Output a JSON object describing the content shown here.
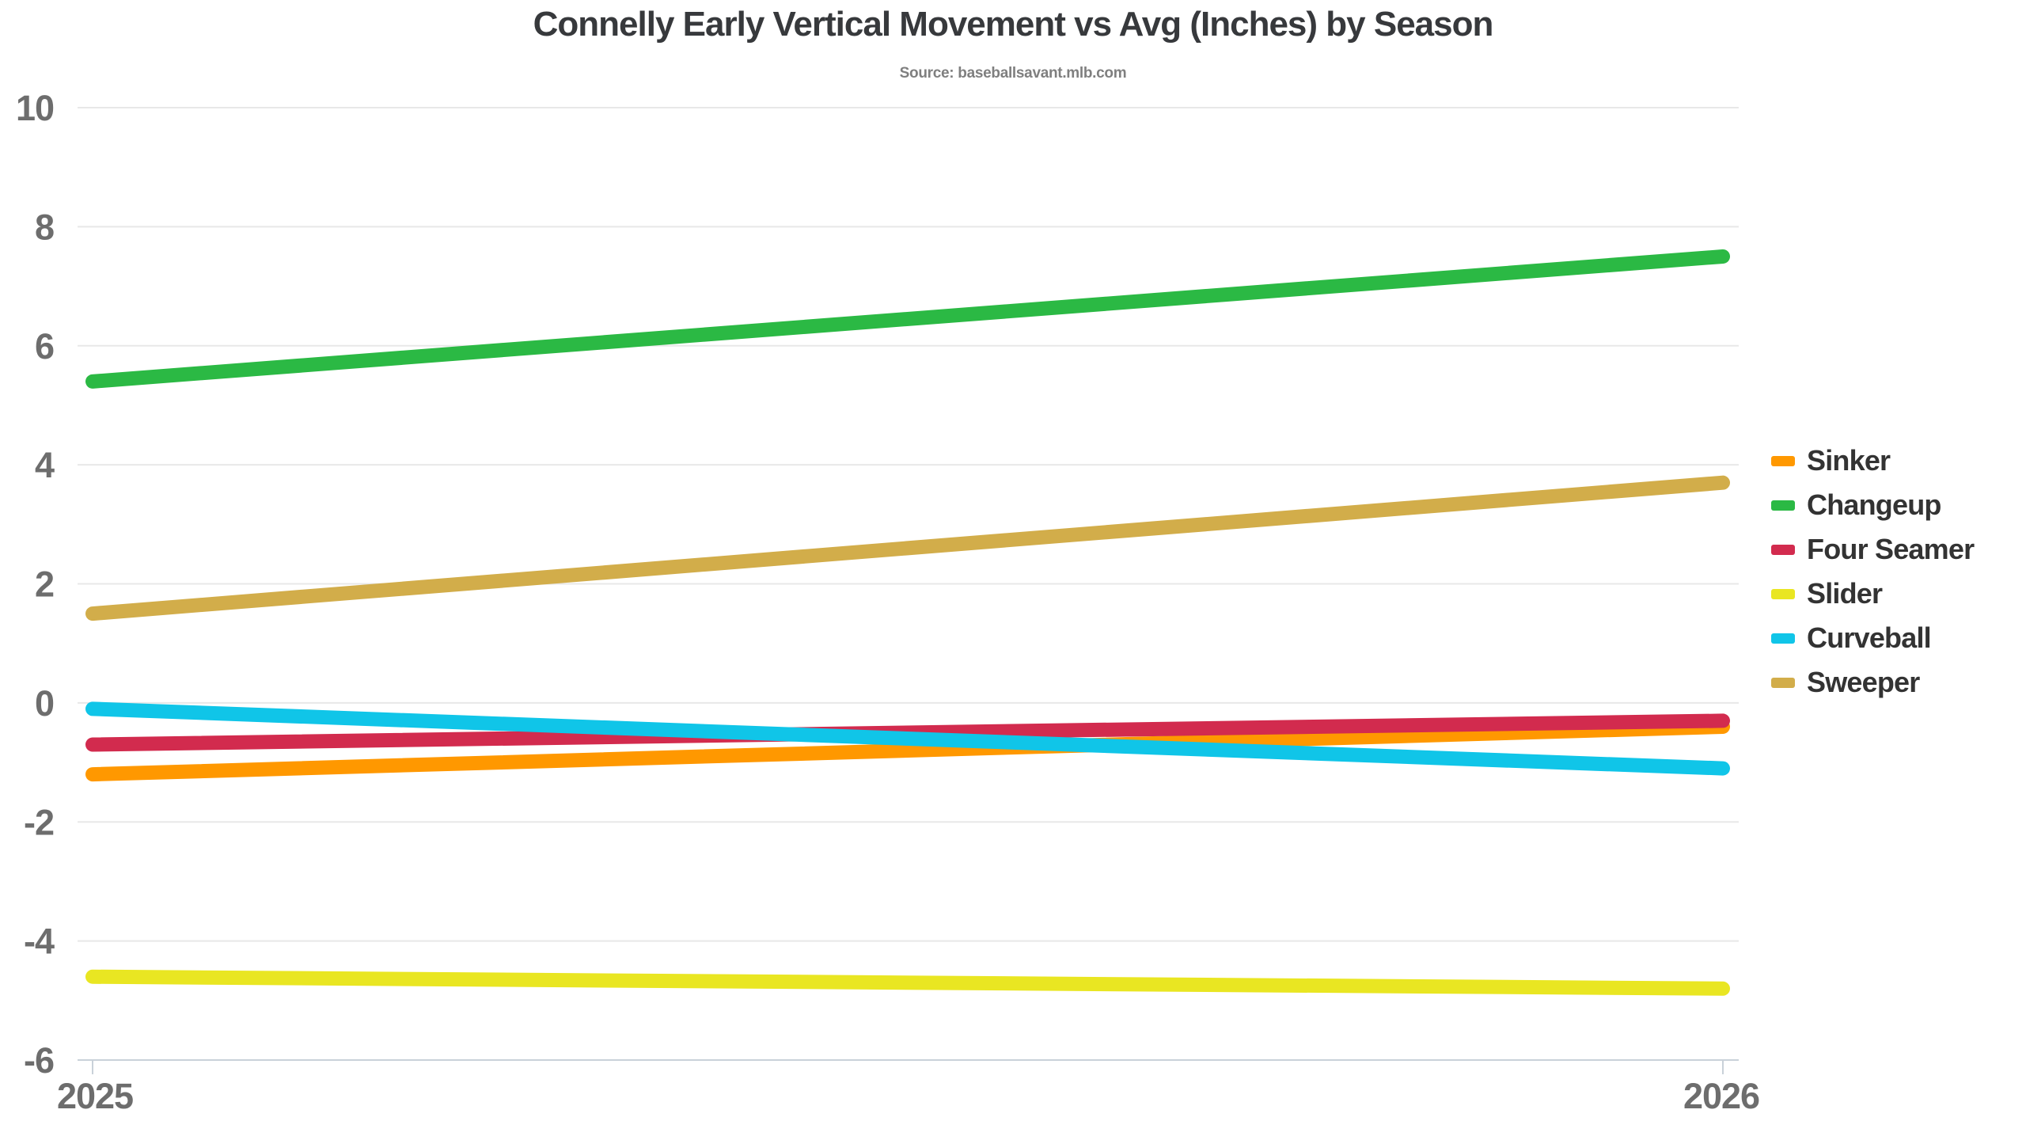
{
  "header": {
    "title": "Connelly Early Vertical Movement vs Avg (Inches) by Season",
    "source": "Source: baseballsavant.mlb.com"
  },
  "chart_data": {
    "type": "line",
    "title": "Connelly Early Vertical Movement vs Avg (Inches) by Season",
    "subtitle": "Source: baseballsavant.mlb.com",
    "x": [
      "2025",
      "2026"
    ],
    "xlabel": "",
    "ylabel": "",
    "ylim": [
      -6,
      10
    ],
    "ytick_step": 2,
    "yticks": [
      10,
      8,
      6,
      4,
      2,
      0,
      -2,
      -4,
      -6
    ],
    "grid": true,
    "legend_position": "right",
    "series": [
      {
        "name": "Sinker",
        "color": "#FF9800",
        "values": [
          -1.2,
          -0.4
        ]
      },
      {
        "name": "Changeup",
        "color": "#2BB944",
        "values": [
          5.4,
          7.5
        ]
      },
      {
        "name": "Four Seamer",
        "color": "#D22B4E",
        "values": [
          -0.7,
          -0.3
        ]
      },
      {
        "name": "Slider",
        "color": "#E9E622",
        "values": [
          -4.6,
          -4.8
        ]
      },
      {
        "name": "Curveball",
        "color": "#10C5E8",
        "values": [
          -0.1,
          -1.1
        ]
      },
      {
        "name": "Sweeper",
        "color": "#D2AD4A",
        "values": [
          1.5,
          3.7
        ]
      }
    ]
  },
  "style_colors": {
    "title": "#37393c",
    "subtitle": "#7f7f7f",
    "tick_labels": "#6d6d6d",
    "gridlines": "#e8e8e8",
    "axis": "#c9d1d9"
  }
}
